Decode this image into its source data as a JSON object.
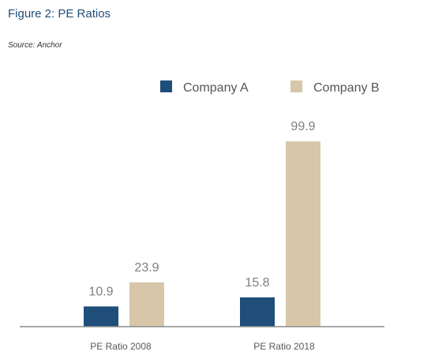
{
  "figure": {
    "title": "Figure 2: PE Ratios",
    "source": "Source: Anchor"
  },
  "colors": {
    "title": "#1f4e79",
    "company_a": "#1f4e79",
    "company_b": "#d7c7a8",
    "axis": "#8c8c8c"
  },
  "chart_data": {
    "type": "bar",
    "title": "Figure 2: PE Ratios",
    "subtitle": "Source: Anchor",
    "categories": [
      "PE Ratio 2008",
      "PE Ratio 2018"
    ],
    "series": [
      {
        "name": "Company A",
        "values": [
          10.9,
          15.8
        ],
        "value_labels": [
          "10.9",
          "15.8"
        ]
      },
      {
        "name": "Company B",
        "values": [
          23.9,
          99.9
        ],
        "value_labels": [
          "23.9",
          "99.9"
        ]
      }
    ],
    "xlabel": "",
    "ylabel": "",
    "ylim": [
      0,
      100
    ],
    "grid": false,
    "legend_position": "top"
  }
}
